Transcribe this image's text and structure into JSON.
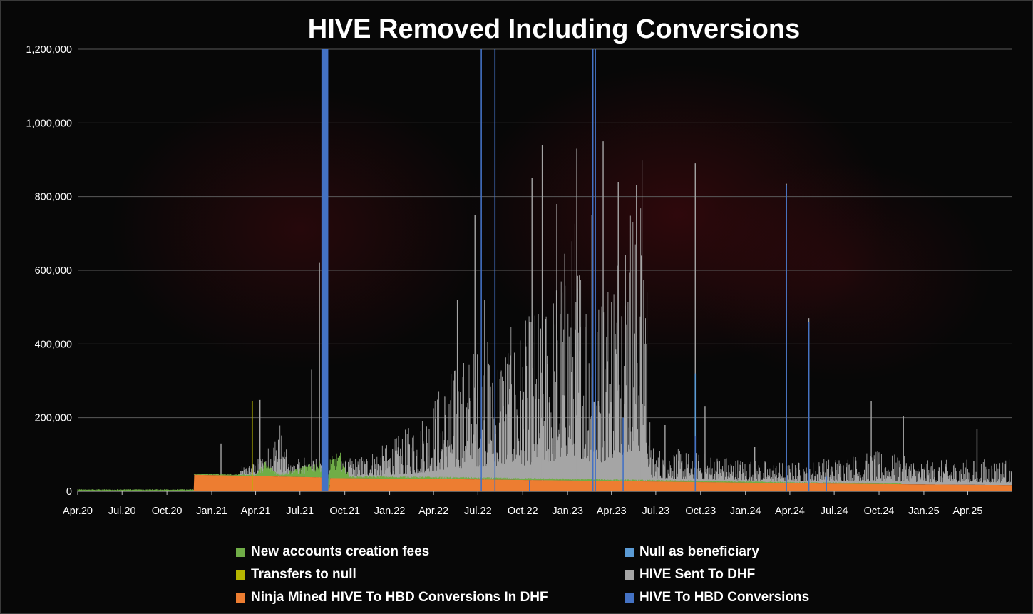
{
  "chart_data": {
    "type": "bar",
    "stacked": true,
    "title": "HIVE Removed Including Conversions",
    "xlabel": "",
    "ylabel": "",
    "ylim": [
      0,
      1200000
    ],
    "yticks": [
      {
        "value": 0,
        "label": "0"
      },
      {
        "value": 200000,
        "label": "200,000"
      },
      {
        "value": 400000,
        "label": "400,000"
      },
      {
        "value": 600000,
        "label": "600,000"
      },
      {
        "value": 800000,
        "label": "800,000"
      },
      {
        "value": 1000000,
        "label": "1,000,000"
      },
      {
        "value": 1200000,
        "label": "1,200,000"
      }
    ],
    "xdomain": [
      "2020-04-01",
      "2025-06-30"
    ],
    "xticks": [
      {
        "date": "2020-04-01",
        "label": "Apr.20"
      },
      {
        "date": "2020-07-01",
        "label": "Jul.20"
      },
      {
        "date": "2020-10-01",
        "label": "Oct.20"
      },
      {
        "date": "2021-01-01",
        "label": "Jan.21"
      },
      {
        "date": "2021-04-01",
        "label": "Apr.21"
      },
      {
        "date": "2021-07-01",
        "label": "Jul.21"
      },
      {
        "date": "2021-10-01",
        "label": "Oct.21"
      },
      {
        "date": "2022-01-01",
        "label": "Jan.22"
      },
      {
        "date": "2022-04-01",
        "label": "Apr.22"
      },
      {
        "date": "2022-07-01",
        "label": "Jul.22"
      },
      {
        "date": "2022-10-01",
        "label": "Oct.22"
      },
      {
        "date": "2023-01-01",
        "label": "Jan.23"
      },
      {
        "date": "2023-04-01",
        "label": "Apr.23"
      },
      {
        "date": "2023-07-01",
        "label": "Jul.23"
      },
      {
        "date": "2023-10-01",
        "label": "Oct.23"
      },
      {
        "date": "2024-01-01",
        "label": "Jan.24"
      },
      {
        "date": "2024-04-01",
        "label": "Apr.24"
      },
      {
        "date": "2024-07-01",
        "label": "Jul.24"
      },
      {
        "date": "2024-10-01",
        "label": "Oct.24"
      },
      {
        "date": "2025-01-01",
        "label": "Jan.25"
      },
      {
        "date": "2025-04-01",
        "label": "Apr.25"
      }
    ],
    "grid": true,
    "legend_position": "bottom",
    "series": [
      {
        "name": "Ninja Mined HIVE To HBD Conversions In DHF",
        "color": "#ed7d31",
        "points": [
          {
            "date": "2020-04-01",
            "value": 2000
          },
          {
            "date": "2020-11-25",
            "value": 2000
          },
          {
            "date": "2020-11-26",
            "value": 45000
          },
          {
            "date": "2021-08-18",
            "value": 38000
          },
          {
            "date": "2021-08-30",
            "value": 0
          },
          {
            "date": "2021-09-01",
            "value": 36000
          },
          {
            "date": "2022-06-01",
            "value": 33000
          },
          {
            "date": "2022-12-01",
            "value": 30000
          },
          {
            "date": "2023-06-01",
            "value": 27000
          },
          {
            "date": "2023-12-01",
            "value": 24000
          },
          {
            "date": "2024-06-01",
            "value": 21000
          },
          {
            "date": "2024-12-01",
            "value": 19000
          },
          {
            "date": "2025-06-30",
            "value": 17000
          }
        ]
      },
      {
        "name": "HIVE Sent To DHF",
        "color": "#a5a5a5",
        "points": [
          {
            "date": "2021-03-01",
            "value": 15000
          },
          {
            "date": "2021-04-01",
            "value": 25000
          },
          {
            "date": "2021-05-01",
            "value": 55000
          },
          {
            "date": "2021-05-20",
            "value": 95000
          },
          {
            "date": "2021-06-10",
            "value": 20000
          },
          {
            "date": "2021-07-15",
            "value": 40000
          },
          {
            "date": "2021-10-01",
            "value": 30000
          },
          {
            "date": "2022-01-01",
            "value": 60000
          },
          {
            "date": "2022-03-01",
            "value": 100000
          },
          {
            "date": "2022-05-01",
            "value": 180000
          },
          {
            "date": "2022-07-01",
            "value": 230000
          },
          {
            "date": "2022-10-01",
            "value": 260000
          },
          {
            "date": "2022-12-01",
            "value": 330000
          },
          {
            "date": "2023-01-15",
            "value": 450000
          },
          {
            "date": "2023-03-01",
            "value": 300000
          },
          {
            "date": "2023-05-01",
            "value": 500000
          },
          {
            "date": "2023-06-10",
            "value": 560000
          },
          {
            "date": "2023-06-20",
            "value": 60000
          },
          {
            "date": "2023-10-01",
            "value": 50000
          },
          {
            "date": "2024-01-01",
            "value": 40000
          },
          {
            "date": "2024-04-01",
            "value": 35000
          },
          {
            "date": "2024-07-01",
            "value": 45000
          },
          {
            "date": "2024-10-01",
            "value": 55000
          },
          {
            "date": "2025-01-01",
            "value": 40000
          },
          {
            "date": "2025-06-30",
            "value": 45000
          }
        ],
        "spikes": [
          {
            "date": "2021-01-20",
            "value": 130000
          },
          {
            "date": "2021-04-10",
            "value": 248000
          },
          {
            "date": "2021-05-18",
            "value": 140000
          },
          {
            "date": "2021-07-25",
            "value": 330000
          },
          {
            "date": "2021-08-10",
            "value": 620000
          },
          {
            "date": "2021-08-20",
            "value": 970000
          },
          {
            "date": "2022-05-20",
            "value": 520000
          },
          {
            "date": "2022-06-25",
            "value": 750000
          },
          {
            "date": "2022-07-15",
            "value": 520000
          },
          {
            "date": "2022-10-20",
            "value": 850000
          },
          {
            "date": "2022-11-10",
            "value": 940000
          },
          {
            "date": "2022-12-10",
            "value": 780000
          },
          {
            "date": "2023-01-20",
            "value": 930000
          },
          {
            "date": "2023-02-20",
            "value": 750000
          },
          {
            "date": "2023-03-15",
            "value": 950000
          },
          {
            "date": "2023-04-15",
            "value": 840000
          },
          {
            "date": "2023-06-01",
            "value": 640000
          },
          {
            "date": "2023-07-20",
            "value": 180000
          },
          {
            "date": "2023-09-20",
            "value": 890000
          },
          {
            "date": "2023-10-10",
            "value": 230000
          },
          {
            "date": "2024-01-20",
            "value": 120000
          },
          {
            "date": "2024-03-25",
            "value": 835000
          },
          {
            "date": "2024-05-10",
            "value": 470000
          },
          {
            "date": "2024-09-15",
            "value": 245000
          },
          {
            "date": "2024-11-20",
            "value": 205000
          },
          {
            "date": "2025-04-20",
            "value": 170000
          }
        ]
      },
      {
        "name": "New accounts creation fees",
        "color": "#70ad47",
        "points": [
          {
            "date": "2020-04-01",
            "value": 2500
          },
          {
            "date": "2021-04-01",
            "value": 3000
          },
          {
            "date": "2021-04-20",
            "value": 30000
          },
          {
            "date": "2021-05-20",
            "value": 5000
          },
          {
            "date": "2021-09-01",
            "value": 40000
          },
          {
            "date": "2021-09-20",
            "value": 55000
          },
          {
            "date": "2021-10-10",
            "value": 5000
          },
          {
            "date": "2025-06-30",
            "value": 2000
          }
        ]
      },
      {
        "name": "Transfers to null",
        "color": "#b5b500",
        "points": [
          {
            "date": "2020-04-01",
            "value": 0
          },
          {
            "date": "2025-06-30",
            "value": 0
          }
        ],
        "spikes": [
          {
            "date": "2021-03-25",
            "value": 245000
          }
        ]
      },
      {
        "name": "Null as beneficiary",
        "color": "#5b9bd5",
        "points": [
          {
            "date": "2020-04-01",
            "value": 0
          },
          {
            "date": "2025-06-30",
            "value": 0
          }
        ],
        "spikes": [
          {
            "date": "2023-09-20",
            "value": 320000
          }
        ]
      },
      {
        "name": "HIVE To HBD Conversions",
        "color": "#4472c4",
        "points": [
          {
            "date": "2021-08-14",
            "value": 1200000
          },
          {
            "date": "2021-08-28",
            "value": 1200000
          }
        ],
        "spikes": [
          {
            "date": "2022-07-08",
            "value": 1200000
          },
          {
            "date": "2022-08-05",
            "value": 1200000
          },
          {
            "date": "2022-10-15",
            "value": 30000
          },
          {
            "date": "2023-02-22",
            "value": 1200000
          },
          {
            "date": "2023-02-27",
            "value": 1200000
          },
          {
            "date": "2023-04-25",
            "value": 200000
          },
          {
            "date": "2023-09-20",
            "value": 150000
          },
          {
            "date": "2024-03-25",
            "value": 830000
          },
          {
            "date": "2024-05-10",
            "value": 460000
          },
          {
            "date": "2024-06-15",
            "value": 40000
          }
        ]
      }
    ]
  },
  "legend": {
    "items": [
      {
        "label": "New accounts creation fees",
        "color": "#70ad47"
      },
      {
        "label": "Null as beneficiary",
        "color": "#5b9bd5"
      },
      {
        "label": "Transfers to null",
        "color": "#b5b500"
      },
      {
        "label": "HIVE Sent To DHF",
        "color": "#a5a5a5"
      },
      {
        "label": "Ninja Mined HIVE To HBD Conversions In DHF",
        "color": "#ed7d31"
      },
      {
        "label": "HIVE To HBD Conversions",
        "color": "#4472c4"
      }
    ]
  }
}
